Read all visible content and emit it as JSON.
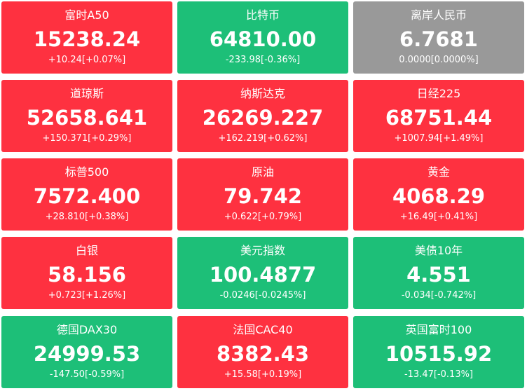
{
  "tiles": [
    {
      "name": "富时A50",
      "price": "15238.24",
      "change": "+10.24[+0.07%]",
      "color": "#fe3140"
    },
    {
      "name": "比特币",
      "price": "64810.00",
      "change": "-233.98[-0.36%]",
      "color": "#1dbf78"
    },
    {
      "name": "离岸人民币",
      "price": "6.7681",
      "change": "0.0000[0.0000%]",
      "color": "#999999"
    },
    {
      "name": "道琼斯",
      "price": "52658.641",
      "change": "+150.371[+0.29%]",
      "color": "#fe3140"
    },
    {
      "name": "纳斯达克",
      "price": "26269.227",
      "change": "+162.219[+0.62%]",
      "color": "#fe3140"
    },
    {
      "name": "日经225",
      "price": "68751.44",
      "change": "+1007.94[+1.49%]",
      "color": "#fe3140"
    },
    {
      "name": "标普500",
      "price": "7572.400",
      "change": "+28.810[+0.38%]",
      "color": "#fe3140"
    },
    {
      "name": "原油",
      "price": "79.742",
      "change": "+0.622[+0.79%]",
      "color": "#fe3140"
    },
    {
      "name": "黄金",
      "price": "4068.29",
      "change": "+16.49[+0.41%]",
      "color": "#fe3140"
    },
    {
      "name": "白银",
      "price": "58.156",
      "change": "+0.723[+1.26%]",
      "color": "#fe3140"
    },
    {
      "name": "美元指数",
      "price": "100.4877",
      "change": "-0.0246[-0.0245%]",
      "color": "#1dbf78"
    },
    {
      "name": "美债10年",
      "price": "4.551",
      "change": "-0.034[-0.742%]",
      "color": "#1dbf78"
    },
    {
      "name": "德国DAX30",
      "price": "24999.53",
      "change": "-147.50[-0.59%]",
      "color": "#1dbf78"
    },
    {
      "name": "法国CAC40",
      "price": "8382.43",
      "change": "+15.58[+0.19%]",
      "color": "#fe3140"
    },
    {
      "name": "英国富时100",
      "price": "10515.92",
      "change": "-13.47[-0.13%]",
      "color": "#1dbf78"
    }
  ]
}
